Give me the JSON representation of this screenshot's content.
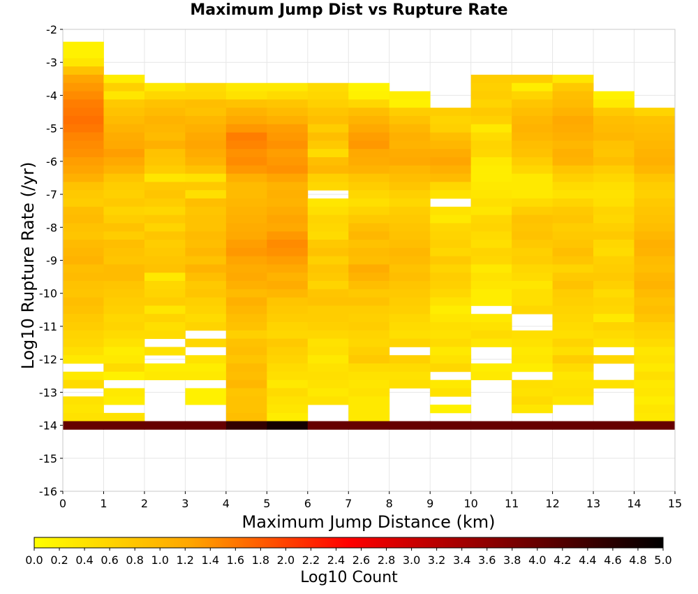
{
  "chart_data": {
    "type": "heatmap",
    "title": "Maximum Jump Dist vs Rupture Rate",
    "xlabel": "Maximum Jump Distance (km)",
    "ylabel": "Log10 Rupture Rate (/yr)",
    "colorbar_label": "Log10 Count",
    "xlim": [
      0,
      15
    ],
    "ylim": [
      -16,
      -2
    ],
    "xticks": [
      0,
      1,
      2,
      3,
      4,
      5,
      6,
      7,
      8,
      9,
      10,
      11,
      12,
      13,
      14,
      15
    ],
    "yticks": [
      -2,
      -3,
      -4,
      -5,
      -6,
      -7,
      -8,
      -9,
      -10,
      -11,
      -12,
      -13,
      -14,
      -15,
      -16
    ],
    "color_range": [
      0.0,
      5.0
    ],
    "colorbar_ticks": [
      "0.0",
      "0.2",
      "0.4",
      "0.6",
      "0.8",
      "1.0",
      "1.2",
      "1.4",
      "1.6",
      "1.8",
      "2.0",
      "2.2",
      "2.4",
      "2.6",
      "2.8",
      "3.0",
      "3.2",
      "3.4",
      "3.6",
      "3.8",
      "4.0",
      "4.2",
      "4.4",
      "4.6",
      "4.8",
      "5.0"
    ],
    "colormap": [
      "#ffff00",
      "#ffa500",
      "#ff0000",
      "#800000",
      "#000000"
    ],
    "grid": true,
    "x_bins": [
      0.5,
      1.5,
      2.5,
      3.5,
      4.5,
      5.5,
      6.5,
      7.5,
      8.5,
      9.5,
      10.5,
      11.5,
      12.5,
      13.5,
      14.5
    ],
    "y_bin_start": -2.5,
    "y_bin_step": -0.25,
    "column_values": [
      [
        0.2,
        0.2,
        0.35,
        0.85,
        1.25,
        1.35,
        1.45,
        1.55,
        1.6,
        1.65,
        1.6,
        1.5,
        1.45,
        1.4,
        1.3,
        1.25,
        1.1,
        0.85,
        0.75,
        0.7,
        0.9,
        0.95,
        0.85,
        0.8,
        0.95,
        1.0,
        1.05,
        0.9,
        0.95,
        0.85,
        0.8,
        0.9,
        0.85,
        0.75,
        0.7,
        0.6,
        0.55,
        0.45,
        0.3,
        null,
        0.3,
        0.5,
        null,
        0.4,
        0.35,
        0.4,
        4.0
      ],
      [
        null,
        null,
        null,
        null,
        0.25,
        0.65,
        0.35,
        0.75,
        0.85,
        0.95,
        1.05,
        1.15,
        1.2,
        1.3,
        1.2,
        1.05,
        0.8,
        0.7,
        0.65,
        0.75,
        0.6,
        0.7,
        0.85,
        0.7,
        0.9,
        0.85,
        0.8,
        0.95,
        0.95,
        0.8,
        0.75,
        0.7,
        0.65,
        0.55,
        0.6,
        0.5,
        0.4,
        0.25,
        0.3,
        0.5,
        0.2,
        null,
        0.3,
        0.25,
        null,
        0.4,
        4.0
      ],
      [
        null,
        null,
        null,
        null,
        null,
        0.3,
        0.55,
        0.85,
        0.95,
        1.05,
        1.0,
        0.95,
        1.1,
        0.85,
        0.8,
        0.7,
        0.35,
        0.75,
        0.8,
        0.7,
        0.55,
        0.75,
        0.6,
        0.8,
        0.7,
        0.75,
        0.8,
        0.85,
        0.3,
        0.55,
        0.6,
        0.7,
        0.35,
        0.6,
        0.45,
        0.5,
        null,
        0.4,
        null,
        0.25,
        0.3,
        null,
        null,
        null,
        null,
        null,
        4.0
      ],
      [
        null,
        null,
        null,
        null,
        null,
        0.5,
        0.55,
        0.9,
        0.85,
        1.0,
        1.1,
        1.2,
        1.25,
        1.15,
        1.05,
        0.85,
        0.4,
        0.75,
        0.45,
        0.9,
        0.8,
        0.85,
        0.85,
        0.95,
        0.9,
        1.0,
        0.85,
        1.05,
        0.9,
        0.75,
        0.8,
        0.65,
        0.6,
        0.5,
        0.6,
        null,
        0.55,
        null,
        0.4,
        0.25,
        0.3,
        null,
        0.2,
        0.2,
        null,
        null,
        4.0
      ],
      [
        null,
        null,
        null,
        null,
        null,
        0.3,
        0.4,
        0.85,
        1.05,
        1.2,
        1.35,
        1.55,
        1.5,
        1.4,
        1.45,
        1.35,
        1.1,
        0.95,
        0.95,
        1.0,
        1.05,
        1.1,
        1.15,
        1.2,
        1.3,
        1.35,
        1.25,
        1.15,
        1.2,
        1.1,
        0.95,
        1.1,
        1.0,
        0.9,
        0.85,
        0.65,
        0.85,
        0.9,
        0.8,
        0.95,
        0.9,
        1.0,
        0.8,
        0.85,
        0.85,
        0.9,
        4.5
      ],
      [
        null,
        null,
        null,
        null,
        null,
        0.3,
        0.5,
        0.8,
        0.95,
        1.1,
        1.3,
        1.35,
        1.4,
        1.3,
        1.35,
        1.4,
        1.25,
        1.05,
        1.1,
        1.05,
        1.15,
        1.25,
        1.2,
        1.35,
        1.45,
        1.4,
        1.3,
        1.2,
        1.05,
        1.15,
        1.0,
        0.8,
        0.75,
        0.7,
        0.6,
        0.55,
        0.75,
        0.65,
        0.6,
        0.5,
        0.45,
        0.3,
        0.5,
        0.4,
        0.35,
        0.25,
        4.8
      ],
      [
        null,
        null,
        null,
        null,
        null,
        0.5,
        0.55,
        0.65,
        0.8,
        0.9,
        0.7,
        0.9,
        0.75,
        0.5,
        0.9,
        1.0,
        0.65,
        0.55,
        null,
        0.35,
        0.45,
        0.6,
        0.55,
        0.5,
        0.75,
        0.85,
        0.65,
        0.8,
        0.75,
        0.6,
        0.8,
        0.85,
        0.7,
        0.7,
        0.65,
        0.55,
        0.4,
        0.45,
        0.3,
        0.4,
        0.45,
        0.4,
        0.3,
        0.4,
        null,
        null,
        4.0
      ],
      [
        null,
        null,
        null,
        null,
        null,
        0.15,
        0.2,
        0.55,
        0.9,
        1.05,
        1.2,
        1.3,
        1.35,
        1.2,
        1.15,
        1.05,
        0.8,
        0.7,
        0.55,
        0.45,
        0.6,
        0.75,
        0.9,
        1.0,
        0.85,
        0.95,
        0.9,
        1.15,
        1.05,
        0.9,
        0.75,
        0.85,
        0.7,
        0.65,
        0.7,
        0.6,
        0.55,
        0.65,
        0.75,
        0.5,
        0.4,
        0.35,
        0.4,
        0.3,
        0.3,
        0.3,
        4.0
      ],
      [
        null,
        null,
        null,
        null,
        null,
        null,
        0.25,
        0.2,
        0.7,
        0.85,
        1.0,
        1.1,
        1.05,
        1.15,
        1.2,
        1.0,
        0.9,
        0.8,
        0.65,
        0.55,
        0.7,
        0.75,
        0.8,
        0.85,
        0.9,
        1.0,
        0.95,
        0.85,
        0.9,
        0.8,
        0.75,
        0.7,
        0.65,
        0.55,
        0.5,
        0.45,
        0.6,
        null,
        0.65,
        0.5,
        0.4,
        0.45,
        null,
        null,
        null,
        null,
        4.0
      ],
      [
        null,
        null,
        null,
        null,
        null,
        null,
        null,
        null,
        0.7,
        0.6,
        0.65,
        0.9,
        1.0,
        1.15,
        1.25,
        1.1,
        0.95,
        0.55,
        0.4,
        null,
        0.4,
        0.3,
        0.55,
        0.6,
        0.65,
        0.55,
        0.75,
        0.6,
        0.7,
        0.65,
        0.55,
        0.4,
        0.25,
        0.35,
        0.45,
        0.4,
        0.5,
        0.3,
        0.4,
        0.55,
        null,
        0.3,
        0.4,
        null,
        0.2,
        null,
        4.0
      ],
      [
        null,
        null,
        null,
        null,
        0.7,
        0.65,
        0.7,
        0.6,
        0.75,
        0.65,
        0.3,
        0.5,
        0.6,
        0.55,
        0.3,
        0.25,
        0.25,
        0.3,
        0.35,
        0.45,
        0.35,
        0.55,
        0.6,
        0.5,
        0.45,
        0.6,
        0.55,
        0.3,
        0.4,
        0.35,
        0.25,
        0.25,
        null,
        0.3,
        0.4,
        0.5,
        0.35,
        null,
        null,
        0.25,
        0.3,
        null,
        null,
        null,
        null,
        null,
        4.0
      ],
      [
        null,
        null,
        null,
        null,
        0.7,
        0.25,
        0.6,
        0.8,
        0.9,
        1.0,
        1.05,
        1.0,
        0.9,
        0.85,
        0.7,
        0.55,
        0.3,
        0.3,
        0.3,
        0.5,
        0.7,
        0.85,
        0.8,
        0.85,
        0.75,
        0.65,
        0.7,
        0.55,
        0.5,
        0.35,
        0.45,
        0.45,
        0.55,
        null,
        null,
        0.45,
        0.4,
        0.3,
        0.35,
        0.25,
        null,
        0.45,
        0.4,
        0.5,
        0.35,
        null,
        4.0
      ],
      [
        null,
        null,
        null,
        null,
        0.35,
        0.75,
        0.9,
        0.95,
        1.05,
        1.2,
        1.15,
        1.1,
        1.0,
        1.1,
        1.05,
        0.8,
        0.65,
        0.5,
        0.4,
        0.6,
        0.75,
        0.8,
        0.7,
        0.75,
        0.8,
        0.9,
        0.8,
        0.6,
        0.75,
        0.85,
        0.7,
        0.65,
        0.6,
        0.55,
        0.5,
        0.45,
        0.6,
        0.45,
        0.7,
        0.5,
        0.35,
        0.4,
        0.45,
        0.35,
        null,
        null,
        4.0
      ],
      [
        null,
        null,
        null,
        null,
        null,
        null,
        0.2,
        0.3,
        0.75,
        0.9,
        0.95,
        1.0,
        0.85,
        0.8,
        0.9,
        0.7,
        0.55,
        0.45,
        0.4,
        0.45,
        0.6,
        0.55,
        0.65,
        0.75,
        0.55,
        0.5,
        0.65,
        0.7,
        0.75,
        0.65,
        0.5,
        0.6,
        0.55,
        0.3,
        0.6,
        0.5,
        0.4,
        null,
        0.55,
        null,
        null,
        0.4,
        null,
        null,
        null,
        null,
        4.0
      ],
      [
        null,
        null,
        null,
        null,
        null,
        null,
        null,
        null,
        0.6,
        0.85,
        0.9,
        0.95,
        1.0,
        1.05,
        1.1,
        1.0,
        0.8,
        0.7,
        0.65,
        0.75,
        0.8,
        0.85,
        0.9,
        1.0,
        1.1,
        1.05,
        0.95,
        0.9,
        1.0,
        1.05,
        0.95,
        0.85,
        0.9,
        0.8,
        0.65,
        0.6,
        0.5,
        0.35,
        0.4,
        0.3,
        0.45,
        0.3,
        0.35,
        0.25,
        0.35,
        0.3,
        4.0
      ]
    ]
  }
}
